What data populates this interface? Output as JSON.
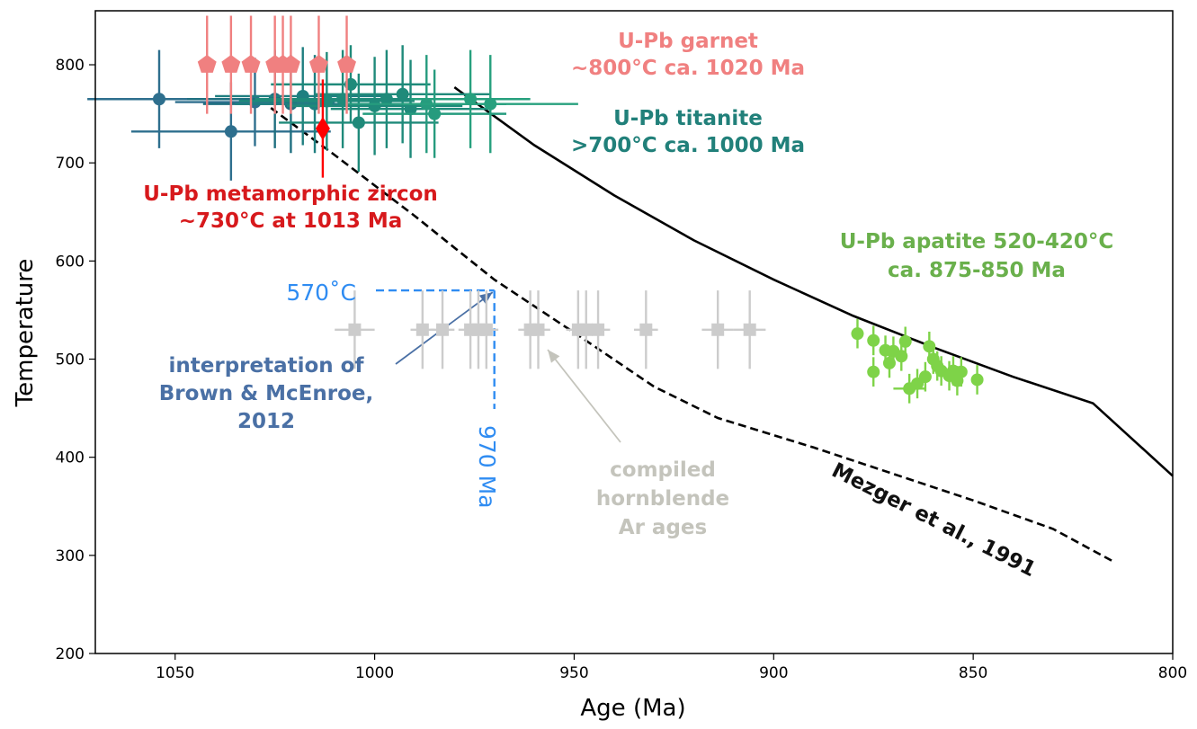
{
  "chart_data": {
    "type": "scatter",
    "xlabel": "Age (Ma)",
    "ylabel": "Temperature",
    "xlim": [
      1070,
      800
    ],
    "ylim": [
      200,
      855
    ],
    "x_reversed": true,
    "x_ticks": [
      "1050",
      "1000",
      "950",
      "900",
      "850",
      "800"
    ],
    "x_tick_values": [
      1050,
      1000,
      950,
      900,
      850,
      800
    ],
    "y_ticks": [
      "200",
      "300",
      "400",
      "500",
      "600",
      "700",
      "800"
    ],
    "y_tick_values": [
      200,
      300,
      400,
      500,
      600,
      700,
      800
    ],
    "grid": false,
    "colors": {
      "garnet": "#f08080",
      "zircon": "#e31a1c",
      "zircon_text": "#d7191c",
      "titanite_dark": "#2e6f8e",
      "titanite_teal": "#1f8a7a",
      "titanite_text": "#21807a",
      "apatite": "#7ed348",
      "apatite_text": "#6ab04c",
      "hornblende": "#cccccc",
      "hornblende_text": "#c4c4bc",
      "brown": "#4a70a5",
      "interp": "#2f8cf2",
      "curve": "#000000"
    },
    "series": [
      {
        "key": "garnet",
        "marker": "pentagon",
        "color": "#f08080",
        "points": [
          {
            "x": 1042,
            "y": 800,
            "xerr": 2,
            "yerr": 50
          },
          {
            "x": 1036,
            "y": 800,
            "xerr": 2,
            "yerr": 50
          },
          {
            "x": 1031,
            "y": 800,
            "xerr": 2,
            "yerr": 50
          },
          {
            "x": 1025,
            "y": 800,
            "xerr": 2,
            "yerr": 50
          },
          {
            "x": 1023,
            "y": 800,
            "xerr": 2,
            "yerr": 50
          },
          {
            "x": 1021,
            "y": 800,
            "xerr": 2,
            "yerr": 50
          },
          {
            "x": 1014,
            "y": 800,
            "xerr": 2,
            "yerr": 50
          },
          {
            "x": 1007,
            "y": 800,
            "xerr": 2,
            "yerr": 50
          }
        ]
      },
      {
        "key": "titanite",
        "marker": "circle",
        "color": "#1f8a7a",
        "points": [
          {
            "x": 1054,
            "y": 765,
            "xerr": 18,
            "yerr": 50,
            "color": "#2e6f8e"
          },
          {
            "x": 1036,
            "y": 732,
            "xerr": 25,
            "yerr": 50,
            "color": "#2e6f8e"
          },
          {
            "x": 1030,
            "y": 762,
            "xerr": 20,
            "yerr": 45,
            "color": "#2e6f8e"
          },
          {
            "x": 1025,
            "y": 765,
            "xerr": 22,
            "yerr": 50,
            "color": "#1f6f80"
          },
          {
            "x": 1021,
            "y": 760,
            "xerr": 22,
            "yerr": 50,
            "color": "#1f6f80"
          },
          {
            "x": 1018,
            "y": 768,
            "xerr": 22,
            "yerr": 50,
            "color": "#1f7f80"
          },
          {
            "x": 1015,
            "y": 760,
            "xerr": 20,
            "yerr": 50,
            "color": "#1f7f80"
          },
          {
            "x": 1012,
            "y": 763,
            "xerr": 22,
            "yerr": 50,
            "color": "#1f8a7a"
          },
          {
            "x": 1008,
            "y": 765,
            "xerr": 22,
            "yerr": 50,
            "color": "#1f8a7a"
          },
          {
            "x": 1006,
            "y": 780,
            "xerr": 20,
            "yerr": 40,
            "color": "#1f8a7a"
          },
          {
            "x": 1004,
            "y": 741,
            "xerr": 20,
            "yerr": 50,
            "color": "#1f8a7a"
          },
          {
            "x": 1000,
            "y": 758,
            "xerr": 22,
            "yerr": 50,
            "color": "#1f8a7a"
          },
          {
            "x": 997,
            "y": 765,
            "xerr": 22,
            "yerr": 50,
            "color": "#1f8a7a"
          },
          {
            "x": 993,
            "y": 770,
            "xerr": 22,
            "yerr": 50,
            "color": "#1f8a7a"
          },
          {
            "x": 991,
            "y": 755,
            "xerr": 20,
            "yerr": 50,
            "color": "#1f8a7a"
          },
          {
            "x": 987,
            "y": 760,
            "xerr": 20,
            "yerr": 50,
            "color": "#269b7e"
          },
          {
            "x": 985,
            "y": 750,
            "xerr": 18,
            "yerr": 45,
            "color": "#269b7e"
          },
          {
            "x": 976,
            "y": 765,
            "xerr": 15,
            "yerr": 50,
            "color": "#27a07e"
          },
          {
            "x": 971,
            "y": 760,
            "xerr": 22,
            "yerr": 50,
            "color": "#27a07e"
          }
        ]
      },
      {
        "key": "zircon",
        "marker": "diamond",
        "color": "#ff0000",
        "points": [
          {
            "x": 1013,
            "y": 735,
            "xerr": 0,
            "yerr": 50
          }
        ]
      },
      {
        "key": "hornblende",
        "marker": "square",
        "color": "#cccccc",
        "points": [
          {
            "x": 1005,
            "y": 530,
            "xerr": 5,
            "yerr": 40
          },
          {
            "x": 988,
            "y": 530,
            "xerr": 3,
            "yerr": 40
          },
          {
            "x": 983,
            "y": 530,
            "xerr": 3,
            "yerr": 40
          },
          {
            "x": 976,
            "y": 530,
            "xerr": 3,
            "yerr": 40
          },
          {
            "x": 974,
            "y": 530,
            "xerr": 3,
            "yerr": 40
          },
          {
            "x": 972,
            "y": 530,
            "xerr": 3,
            "yerr": 40
          },
          {
            "x": 961,
            "y": 530,
            "xerr": 3,
            "yerr": 40
          },
          {
            "x": 959,
            "y": 530,
            "xerr": 3,
            "yerr": 40
          },
          {
            "x": 949,
            "y": 530,
            "xerr": 3,
            "yerr": 40
          },
          {
            "x": 947,
            "y": 530,
            "xerr": 3,
            "yerr": 40
          },
          {
            "x": 944,
            "y": 530,
            "xerr": 3,
            "yerr": 40
          },
          {
            "x": 932,
            "y": 530,
            "xerr": 3,
            "yerr": 40
          },
          {
            "x": 914,
            "y": 530,
            "xerr": 4,
            "yerr": 40
          },
          {
            "x": 906,
            "y": 530,
            "xerr": 4,
            "yerr": 40
          }
        ]
      },
      {
        "key": "apatite",
        "marker": "circle",
        "color": "#7ed348",
        "points": [
          {
            "x": 879,
            "y": 526,
            "xerr": 0,
            "yerr": 15
          },
          {
            "x": 875,
            "y": 519,
            "xerr": 0,
            "yerr": 15
          },
          {
            "x": 875,
            "y": 487,
            "xerr": 0,
            "yerr": 15
          },
          {
            "x": 872,
            "y": 509,
            "xerr": 0,
            "yerr": 15
          },
          {
            "x": 871,
            "y": 496,
            "xerr": 0,
            "yerr": 15
          },
          {
            "x": 870,
            "y": 508,
            "xerr": 0,
            "yerr": 15
          },
          {
            "x": 868,
            "y": 503,
            "xerr": 0,
            "yerr": 15
          },
          {
            "x": 867,
            "y": 518,
            "xerr": 0,
            "yerr": 15
          },
          {
            "x": 866,
            "y": 470,
            "xerr": 4,
            "yerr": 15
          },
          {
            "x": 864,
            "y": 475,
            "xerr": 0,
            "yerr": 15
          },
          {
            "x": 862,
            "y": 482,
            "xerr": 0,
            "yerr": 15
          },
          {
            "x": 861,
            "y": 513,
            "xerr": 0,
            "yerr": 15
          },
          {
            "x": 860,
            "y": 500,
            "xerr": 0,
            "yerr": 15
          },
          {
            "x": 859,
            "y": 493,
            "xerr": 0,
            "yerr": 15
          },
          {
            "x": 858,
            "y": 488,
            "xerr": 0,
            "yerr": 15
          },
          {
            "x": 856,
            "y": 483,
            "xerr": 0,
            "yerr": 15
          },
          {
            "x": 855,
            "y": 488,
            "xerr": 0,
            "yerr": 15
          },
          {
            "x": 854,
            "y": 478,
            "xerr": 0,
            "yerr": 15
          },
          {
            "x": 853,
            "y": 487,
            "xerr": 0,
            "yerr": 15
          },
          {
            "x": 849,
            "y": 479,
            "xerr": 0,
            "yerr": 15
          }
        ]
      }
    ],
    "curves": [
      {
        "key": "solid",
        "style": "solid",
        "points": [
          [
            980,
            777
          ],
          [
            960,
            718
          ],
          [
            940,
            667
          ],
          [
            920,
            621
          ],
          [
            900,
            581
          ],
          [
            880,
            544
          ],
          [
            860,
            512
          ],
          [
            840,
            482
          ],
          [
            820,
            455
          ],
          [
            800,
            381
          ]
        ]
      },
      {
        "key": "mezger",
        "style": "dashed",
        "label": "Mezger et al., 1991",
        "points": [
          [
            1026,
            756
          ],
          [
            1010,
            708
          ],
          [
            990,
            646
          ],
          [
            970,
            581
          ],
          [
            950,
            527
          ],
          [
            930,
            472
          ],
          [
            914,
            440
          ],
          [
            890,
            410
          ],
          [
            870,
            383
          ],
          [
            850,
            356
          ],
          [
            830,
            327
          ],
          [
            815,
            294
          ]
        ]
      }
    ],
    "interpretation": {
      "x": 970,
      "y": 570,
      "y_label": "570˚C",
      "x_label": "970 Ma"
    },
    "annotations": {
      "garnet": [
        "U-Pb garnet",
        "~800°C ca. 1020 Ma"
      ],
      "titanite": [
        "U-Pb titanite",
        ">700°C ca. 1000 Ma"
      ],
      "zircon": [
        "U-Pb metamorphic zircon",
        "~730°C at 1013 Ma"
      ],
      "apatite": [
        "U-Pb apatite 520-420°C",
        "ca. 875-850 Ma"
      ],
      "brown": [
        "interpretation of",
        "Brown & McEnroe,",
        "2012"
      ],
      "hornblende": [
        "compiled",
        "hornblende",
        "Ar ages"
      ],
      "mezger": "Mezger et al., 1991"
    }
  }
}
